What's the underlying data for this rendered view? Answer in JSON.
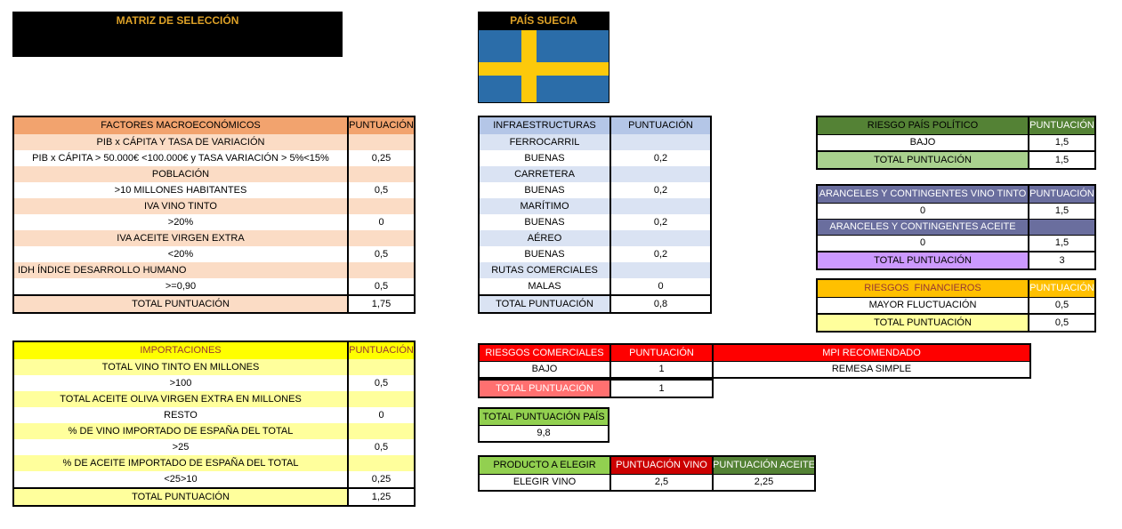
{
  "title_box": {
    "label": "MATRIZ DE SELECCIÓN"
  },
  "country_box": {
    "label": "PAÍS SUECIA"
  },
  "flag": {
    "country": "sweden"
  },
  "colors": {
    "gold": "#DDA127",
    "orange-h": "#F2A36E",
    "orange-c": "#FBDCC5",
    "yellow-h": "#FFFF00",
    "yellow-c": "#FFFF9C",
    "dark-red-text": "#963634",
    "blue-h": "#B4C6E7",
    "blue-c": "#DAE3F3",
    "green-h": "#548235",
    "green-l": "#A9D18E",
    "slate-h": "#6A6E9E",
    "slate-l": "#CC99FF",
    "amber-h": "#FFC000",
    "red-h": "#FE0000",
    "red-l": "#FF7070",
    "red-d": "#CC0000",
    "bright-green": "#92D050",
    "flag-blue": "#2B6DA9",
    "flag-yellow": "#FCC90B"
  },
  "tables": {
    "factores": {
      "header": {
        "label": "FACTORES MACROECONÓMICOS",
        "score": "PUNTUACIÓN"
      },
      "rows": [
        {
          "type": "category",
          "label": "PIB x CÁPITA Y TASA DE VARIACIÓN",
          "value": ""
        },
        {
          "type": "item",
          "label": "PIB x CÁPITA > 50.000€ <100.000€ y TASA VARIACIÓN > 5%<15%",
          "value": "0,25"
        },
        {
          "type": "category",
          "label": "POBLACIÓN",
          "value": ""
        },
        {
          "type": "item",
          "label": ">10 MILLONES HABITANTES",
          "value": "0,5"
        },
        {
          "type": "category",
          "label": "IVA VINO TINTO",
          "value": ""
        },
        {
          "type": "item",
          "label": ">20%",
          "value": "0"
        },
        {
          "type": "category",
          "label": "IVA ACEITE VIRGEN EXTRA",
          "value": ""
        },
        {
          "type": "item",
          "label": "<20%",
          "value": "0,5"
        },
        {
          "type": "category",
          "label": "IDH ÍNDICE DESARROLLO HUMANO",
          "value": "",
          "align": "left"
        },
        {
          "type": "item",
          "label": ">=0,90",
          "value": "0,5"
        },
        {
          "type": "total",
          "label": "TOTAL PUNTUACIÓN",
          "value": "1,75"
        }
      ]
    },
    "infra": {
      "header": {
        "label": "INFRAESTRUCTURAS",
        "score": "PUNTUACIÓN"
      },
      "rows": [
        {
          "type": "category",
          "label": "FERROCARRIL",
          "value": ""
        },
        {
          "type": "item",
          "label": "BUENAS",
          "value": "0,2"
        },
        {
          "type": "category",
          "label": "CARRETERA",
          "value": ""
        },
        {
          "type": "item",
          "label": "BUENAS",
          "value": "0,2"
        },
        {
          "type": "category",
          "label": "MARÍTIMO",
          "value": ""
        },
        {
          "type": "item",
          "label": "BUENAS",
          "value": "0,2"
        },
        {
          "type": "category",
          "label": "AÉREO",
          "value": ""
        },
        {
          "type": "item",
          "label": "BUENAS",
          "value": "0,2"
        },
        {
          "type": "category",
          "label": "RUTAS COMERCIALES",
          "value": ""
        },
        {
          "type": "item",
          "label": "MALAS",
          "value": "0"
        },
        {
          "type": "total",
          "label": "TOTAL PUNTUACIÓN",
          "value": "0,8"
        }
      ]
    },
    "politico": {
      "header": {
        "label": "RIESGO PAÍS POLÍTICO",
        "score": "PUNTUACIÓN"
      },
      "rows": [
        {
          "type": "item",
          "label": "BAJO",
          "value": "1,5"
        },
        {
          "type": "total",
          "label": "TOTAL PUNTUACIÓN",
          "value": "1,5"
        }
      ]
    },
    "aranceles": {
      "header": {
        "label": "ARANCELES Y CONTINGENTES VINO TINTO",
        "score": "PUNTUACIÓN"
      },
      "rows": [
        {
          "type": "item",
          "label": "0",
          "value": "1,5"
        },
        {
          "type": "category",
          "label": "ARANCELES Y CONTINGENTES ACEITE",
          "value": ""
        },
        {
          "type": "item",
          "label": "0",
          "value": "1,5"
        },
        {
          "type": "total",
          "label": "TOTAL PUNTUACIÓN",
          "value": "3"
        }
      ]
    },
    "financieros": {
      "header": {
        "label": "RIESGOS  FINANCIEROS",
        "score": "PUNTUACIÓN"
      },
      "rows": [
        {
          "type": "item",
          "label": "MAYOR FLUCTUACIÓN",
          "value": "0,5"
        },
        {
          "type": "total",
          "label": "TOTAL PUNTUACIÓN",
          "value": "0,5"
        }
      ]
    },
    "importaciones": {
      "header": {
        "label": "IMPORTACIONES",
        "score": "PUNTUACIÓN"
      },
      "rows": [
        {
          "type": "category",
          "label": "TOTAL VINO TINTO EN MILLONES",
          "value": ""
        },
        {
          "type": "item",
          "label": ">100",
          "value": "0,5"
        },
        {
          "type": "category",
          "label": "TOTAL ACEITE OLIVA VIRGEN EXTRA EN MILLONES",
          "value": ""
        },
        {
          "type": "item",
          "label": "RESTO",
          "value": "0"
        },
        {
          "type": "category",
          "label": "% DE VINO IMPORTADO DE ESPAÑA DEL TOTAL",
          "value": ""
        },
        {
          "type": "item",
          "label": ">25",
          "value": "0,5"
        },
        {
          "type": "category",
          "label": "% DE ACEITE IMPORTADO DE ESPAÑA DEL TOTAL",
          "value": ""
        },
        {
          "type": "item",
          "label": "<25>10",
          "value": "0,25"
        },
        {
          "type": "total",
          "label": "TOTAL PUNTUACIÓN",
          "value": "1,25"
        }
      ]
    },
    "comerciales": {
      "header": [
        "RIESGOS COMERCIALES",
        "PUNTUACIÓN",
        "MPI RECOMENDADO"
      ],
      "row": [
        "BAJO",
        "1",
        "REMESA SIMPLE"
      ],
      "total": [
        "TOTAL PUNTUACIÓN",
        "1"
      ]
    },
    "total_pais": {
      "label": "TOTAL PUNTUACIÓN PAÍS",
      "value": "9,8"
    },
    "producto": {
      "header": [
        "PRODUCTO A ELEGIR",
        "PUNTUACIÓN VINO",
        "PUNTUACIÓN ACEITE"
      ],
      "row": [
        "ELEGIR VINO",
        "2,5",
        "2,25"
      ]
    }
  }
}
